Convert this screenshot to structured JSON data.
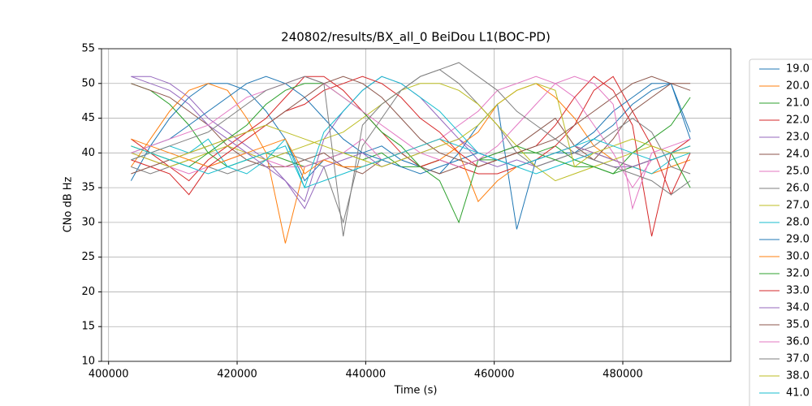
{
  "chart_data": {
    "type": "line",
    "title": "240802/results/BX_all_0 BeiDou L1(BOC-PD)",
    "x_label": "Time (s)",
    "y_label": "CNo dB Hz",
    "x": [
      403500,
      406500,
      409500,
      412500,
      415500,
      418500,
      421500,
      424500,
      427500,
      430500,
      433500,
      436500,
      439500,
      442500,
      445500,
      448500,
      451500,
      454500,
      457500,
      460500,
      463500,
      466500,
      469500,
      472500,
      475500,
      478500,
      481500,
      484500,
      487500,
      490500
    ],
    "xlim": [
      398900,
      496800
    ],
    "xticks": [
      400000,
      420000,
      440000,
      460000,
      480000
    ],
    "ylim": [
      10,
      55
    ],
    "yticks": [
      10,
      15,
      20,
      25,
      30,
      35,
      40,
      45,
      50,
      55
    ],
    "grid": true,
    "legend": "outside right",
    "series": [
      {
        "name": "19.0",
        "color": "#1f77b4",
        "values": [
          36,
          41,
          45,
          48,
          50,
          50,
          49,
          46,
          42,
          36,
          39,
          40,
          40,
          41,
          39,
          38,
          37,
          40,
          44,
          47,
          29,
          39,
          40,
          40,
          42,
          44,
          47,
          49,
          50,
          42
        ]
      },
      {
        "name": "20.0",
        "color": "#ff7f0e",
        "values": [
          38,
          42,
          46,
          49,
          50,
          49,
          45,
          40,
          27,
          38,
          39,
          38,
          38,
          39,
          40,
          38,
          39,
          41,
          43,
          47,
          49,
          50,
          48,
          45,
          41,
          39,
          38,
          37,
          38,
          39
        ]
      },
      {
        "name": "21.0",
        "color": "#2ca02c",
        "values": [
          50,
          49,
          47,
          44,
          40,
          38,
          39,
          40,
          39,
          38,
          39,
          40,
          39,
          40,
          38,
          38,
          39,
          38,
          39,
          39,
          40,
          40,
          41,
          39,
          38,
          37,
          40,
          42,
          44,
          48
        ]
      },
      {
        "name": "22.0",
        "color": "#d62728",
        "values": [
          42,
          40,
          38,
          36,
          39,
          41,
          43,
          45,
          48,
          51,
          51,
          49,
          46,
          43,
          40,
          38,
          39,
          38,
          37,
          37,
          38,
          39,
          41,
          44,
          49,
          51,
          46,
          41,
          34,
          40
        ]
      },
      {
        "name": "23.0",
        "color": "#9467bd",
        "values": [
          51,
          51,
          50,
          48,
          45,
          43,
          41,
          39,
          36,
          33,
          42,
          46,
          49,
          51,
          50,
          48,
          45,
          42,
          39,
          38,
          39,
          38,
          39,
          40,
          39,
          38,
          38,
          39,
          40,
          40
        ]
      },
      {
        "name": "24.0",
        "color": "#8c564b",
        "values": [
          50,
          49,
          48,
          46,
          44,
          41,
          39,
          38,
          38,
          39,
          40,
          38,
          37,
          39,
          40,
          38,
          37,
          38,
          39,
          40,
          41,
          43,
          45,
          41,
          39,
          42,
          46,
          48,
          50,
          50
        ]
      },
      {
        "name": "25.0",
        "color": "#e377c2",
        "values": [
          40,
          39,
          38,
          37,
          38,
          39,
          40,
          39,
          38,
          38,
          39,
          40,
          42,
          39,
          40,
          41,
          42,
          44,
          46,
          49,
          50,
          51,
          50,
          48,
          44,
          40,
          35,
          39,
          40,
          41
        ]
      },
      {
        "name": "26.0",
        "color": "#7f7f7f",
        "values": [
          38,
          37,
          38,
          39,
          38,
          37,
          38,
          39,
          40,
          39,
          38,
          30,
          41,
          45,
          49,
          51,
          52,
          50,
          47,
          44,
          40,
          38,
          39,
          40,
          41,
          43,
          45,
          43,
          38,
          37
        ]
      },
      {
        "name": "27.0",
        "color": "#bcbd22",
        "values": [
          40,
          39,
          38,
          39,
          40,
          41,
          40,
          39,
          40,
          41,
          42,
          43,
          45,
          47,
          49,
          50,
          50,
          49,
          47,
          44,
          41,
          38,
          36,
          37,
          38,
          39,
          40,
          41,
          40,
          40
        ]
      },
      {
        "name": "28.0",
        "color": "#17becf",
        "values": [
          39,
          40,
          41,
          40,
          42,
          38,
          37,
          39,
          42,
          35,
          43,
          46,
          49,
          51,
          50,
          48,
          46,
          43,
          40,
          39,
          38,
          37,
          38,
          39,
          40,
          39,
          38,
          37,
          39,
          40
        ]
      },
      {
        "name": "29.0",
        "color": "#1f77b4",
        "values": [
          40,
          41,
          42,
          44,
          46,
          48,
          50,
          51,
          50,
          48,
          45,
          42,
          40,
          39,
          38,
          37,
          38,
          39,
          40,
          39,
          38,
          39,
          40,
          41,
          43,
          46,
          48,
          50,
          50,
          43
        ]
      },
      {
        "name": "30.0",
        "color": "#ff7f0e",
        "values": [
          42,
          41,
          40,
          39,
          38,
          39,
          40,
          41,
          42,
          37,
          39,
          38,
          38,
          39,
          40,
          41,
          42,
          40,
          33,
          36,
          38,
          39,
          40,
          41,
          40,
          39,
          38,
          39,
          40,
          41
        ]
      },
      {
        "name": "32.0",
        "color": "#2ca02c",
        "values": [
          41,
          40,
          39,
          38,
          40,
          42,
          44,
          47,
          49,
          50,
          50,
          48,
          46,
          43,
          41,
          38,
          36,
          30,
          39,
          40,
          41,
          40,
          39,
          38,
          38,
          37,
          38,
          39,
          40,
          35
        ]
      },
      {
        "name": "33.0",
        "color": "#d62728",
        "values": [
          39,
          38,
          37,
          34,
          38,
          40,
          42,
          44,
          46,
          47,
          49,
          50,
          51,
          50,
          48,
          45,
          43,
          40,
          38,
          39,
          40,
          41,
          44,
          48,
          51,
          49,
          44,
          28,
          40,
          42
        ]
      },
      {
        "name": "34.0",
        "color": "#9467bd",
        "values": [
          51,
          50,
          49,
          47,
          44,
          42,
          40,
          38,
          36,
          32,
          38,
          39,
          40,
          38,
          39,
          40,
          41,
          42,
          40,
          39,
          38,
          39,
          40,
          41,
          40,
          39,
          38,
          39,
          40,
          41
        ]
      },
      {
        "name": "35.0",
        "color": "#8c564b",
        "values": [
          37,
          38,
          39,
          40,
          41,
          42,
          43,
          44,
          46,
          48,
          50,
          51,
          50,
          48,
          45,
          42,
          40,
          39,
          38,
          39,
          40,
          41,
          42,
          44,
          46,
          48,
          50,
          51,
          50,
          49
        ]
      },
      {
        "name": "36.0",
        "color": "#e377c2",
        "values": [
          40,
          41,
          42,
          43,
          44,
          46,
          48,
          49,
          50,
          51,
          50,
          48,
          46,
          44,
          42,
          40,
          39,
          38,
          39,
          41,
          44,
          47,
          50,
          51,
          50,
          47,
          32,
          40,
          41,
          42
        ]
      },
      {
        "name": "37.0",
        "color": "#7f7f7f",
        "values": [
          39,
          40,
          41,
          42,
          43,
          45,
          47,
          49,
          50,
          51,
          50,
          28,
          44,
          47,
          49,
          51,
          52,
          53,
          51,
          49,
          46,
          44,
          42,
          40,
          39,
          38,
          37,
          36,
          34,
          36
        ]
      },
      {
        "name": "38.0",
        "color": "#bcbd22",
        "values": [
          41,
          40,
          39,
          40,
          41,
          42,
          43,
          44,
          43,
          42,
          41,
          40,
          39,
          38,
          39,
          40,
          41,
          42,
          44,
          47,
          49,
          50,
          49,
          38,
          40,
          41,
          42,
          41,
          40,
          41
        ]
      },
      {
        "name": "41.0",
        "color": "#17becf",
        "values": [
          41,
          40,
          39,
          38,
          37,
          38,
          39,
          40,
          41,
          35,
          36,
          37,
          38,
          39,
          40,
          41,
          42,
          41,
          40,
          39,
          38,
          39,
          40,
          41,
          42,
          41,
          40,
          39,
          40,
          41
        ]
      }
    ]
  }
}
